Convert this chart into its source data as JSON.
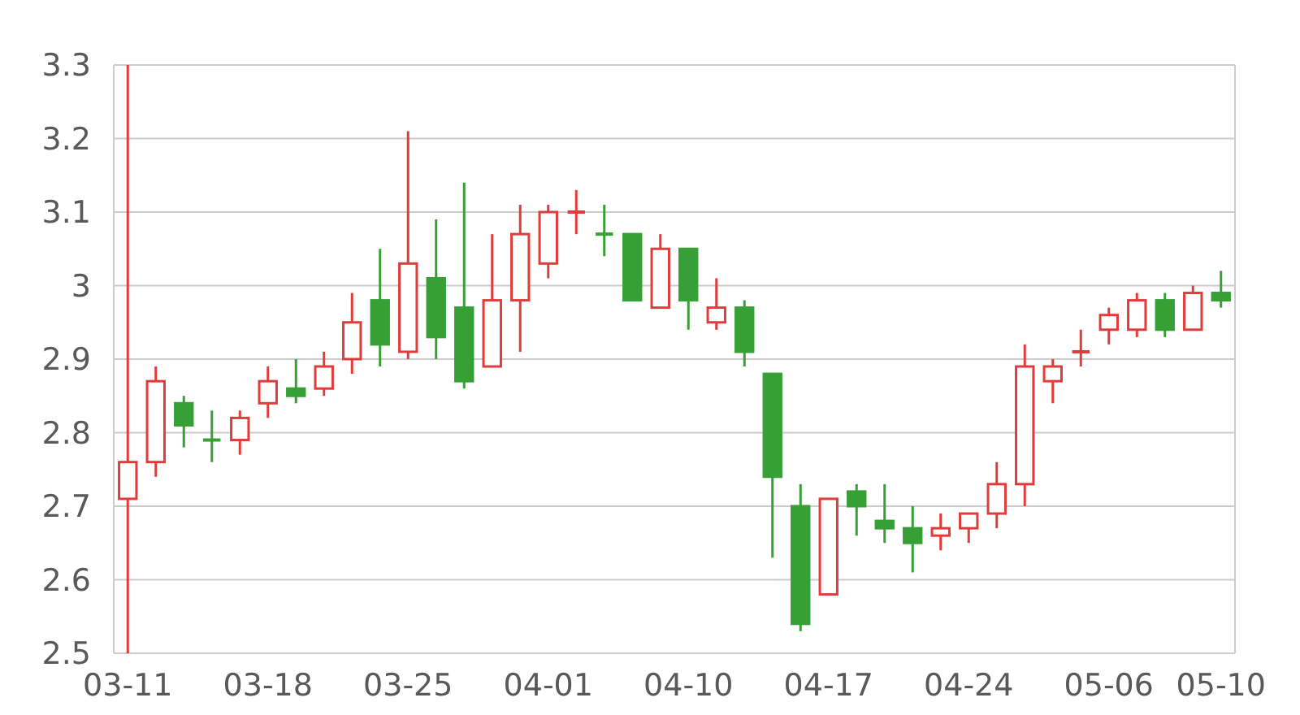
{
  "chart_data": {
    "type": "candlestick",
    "categories": [
      "03-11",
      null,
      null,
      null,
      null,
      "03-18",
      null,
      null,
      null,
      null,
      "03-25",
      null,
      null,
      null,
      null,
      "04-01",
      null,
      null,
      null,
      null,
      "04-10",
      null,
      null,
      null,
      null,
      "04-17",
      null,
      null,
      null,
      null,
      "04-24",
      null,
      null,
      null,
      null,
      "05-06",
      null,
      null,
      null,
      "05-10"
    ],
    "ohlc": [
      [
        2.71,
        3.3,
        2.5,
        2.76
      ],
      [
        2.76,
        2.89,
        2.74,
        2.87
      ],
      [
        2.84,
        2.85,
        2.78,
        2.81
      ],
      [
        2.79,
        2.83,
        2.76,
        2.79
      ],
      [
        2.79,
        2.83,
        2.77,
        2.82
      ],
      [
        2.84,
        2.89,
        2.82,
        2.87
      ],
      [
        2.86,
        2.9,
        2.84,
        2.85
      ],
      [
        2.86,
        2.91,
        2.85,
        2.89
      ],
      [
        2.9,
        2.99,
        2.88,
        2.95
      ],
      [
        2.98,
        3.05,
        2.89,
        2.92
      ],
      [
        2.91,
        3.21,
        2.9,
        3.03
      ],
      [
        3.01,
        3.09,
        2.9,
        2.93
      ],
      [
        2.97,
        3.14,
        2.86,
        2.87
      ],
      [
        2.89,
        3.07,
        2.89,
        2.98
      ],
      [
        2.98,
        3.11,
        2.91,
        3.07
      ],
      [
        3.03,
        3.11,
        3.01,
        3.1
      ],
      [
        3.1,
        3.13,
        3.07,
        3.1
      ],
      [
        3.07,
        3.11,
        3.04,
        3.07
      ],
      [
        3.07,
        3.07,
        2.98,
        2.98
      ],
      [
        2.97,
        3.07,
        2.97,
        3.05
      ],
      [
        3.05,
        3.05,
        2.94,
        2.98
      ],
      [
        2.95,
        3.01,
        2.94,
        2.97
      ],
      [
        2.97,
        2.98,
        2.89,
        2.91
      ],
      [
        2.88,
        2.88,
        2.63,
        2.74
      ],
      [
        2.7,
        2.73,
        2.53,
        2.54
      ],
      [
        2.58,
        2.71,
        2.58,
        2.71
      ],
      [
        2.72,
        2.73,
        2.66,
        2.7
      ],
      [
        2.68,
        2.73,
        2.65,
        2.67
      ],
      [
        2.67,
        2.7,
        2.61,
        2.65
      ],
      [
        2.66,
        2.69,
        2.64,
        2.67
      ],
      [
        2.67,
        2.69,
        2.65,
        2.69
      ],
      [
        2.69,
        2.76,
        2.67,
        2.73
      ],
      [
        2.73,
        2.92,
        2.7,
        2.89
      ],
      [
        2.87,
        2.9,
        2.84,
        2.89
      ],
      [
        2.91,
        2.94,
        2.89,
        2.91
      ],
      [
        2.94,
        2.97,
        2.92,
        2.96
      ],
      [
        2.94,
        2.99,
        2.93,
        2.98
      ],
      [
        2.98,
        2.99,
        2.93,
        2.94
      ],
      [
        2.94,
        3.0,
        2.94,
        2.99
      ],
      [
        2.99,
        3.02,
        2.97,
        2.98
      ]
    ],
    "colors": [
      "#e03c3c",
      "#e03c3c",
      "#36a036",
      "#36a036",
      "#e03c3c",
      "#e03c3c",
      "#36a036",
      "#e03c3c",
      "#e03c3c",
      "#36a036",
      "#e03c3c",
      "#36a036",
      "#36a036",
      "#e03c3c",
      "#e03c3c",
      "#e03c3c",
      "#e03c3c",
      "#36a036",
      "#36a036",
      "#e03c3c",
      "#36a036",
      "#e03c3c",
      "#36a036",
      "#36a036",
      "#36a036",
      "#e03c3c",
      "#36a036",
      "#36a036",
      "#36a036",
      "#e03c3c",
      "#e03c3c",
      "#e03c3c",
      "#e03c3c",
      "#e03c3c",
      "#e03c3c",
      "#e03c3c",
      "#e03c3c",
      "#36a036",
      "#e03c3c",
      "#36a036"
    ],
    "ylim": [
      2.5,
      3.3
    ],
    "yticks": [
      2.5,
      2.6,
      2.7,
      2.8,
      2.9,
      3,
      3.1,
      3.2,
      3.3
    ],
    "grid": "y"
  }
}
